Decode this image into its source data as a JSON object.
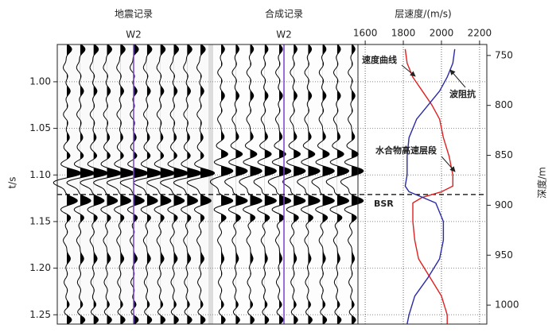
{
  "chart_data": {
    "type": "seismic",
    "panels": [
      {
        "title": "地震记录",
        "well": "W2",
        "traces": 11,
        "events": [
          [
            0.965,
            0.7
          ],
          [
            0.985,
            -0.5
          ],
          [
            1.01,
            0.5
          ],
          [
            1.035,
            -0.5
          ],
          [
            1.06,
            0.4
          ],
          [
            1.08,
            0.6
          ],
          [
            1.098,
            1.6
          ],
          [
            1.108,
            -1.2
          ],
          [
            1.128,
            1.6
          ],
          [
            1.145,
            0.7
          ],
          [
            1.17,
            -0.5
          ],
          [
            1.19,
            0.5
          ],
          [
            1.215,
            -0.4
          ],
          [
            1.24,
            0.5
          ],
          [
            1.255,
            0.8
          ]
        ]
      },
      {
        "title": "合成记录",
        "well": "W2",
        "traces": 10,
        "events": [
          [
            0.965,
            0.5
          ],
          [
            0.99,
            -0.5
          ],
          [
            1.015,
            0.5
          ],
          [
            1.04,
            -0.5
          ],
          [
            1.06,
            0.5
          ],
          [
            1.078,
            1.2
          ],
          [
            1.095,
            1.5
          ],
          [
            1.108,
            -1.0
          ],
          [
            1.128,
            1.8
          ],
          [
            1.145,
            0.9
          ],
          [
            1.17,
            -0.5
          ],
          [
            1.19,
            0.4
          ],
          [
            1.215,
            -0.4
          ],
          [
            1.24,
            0.5
          ],
          [
            1.255,
            0.7
          ]
        ]
      }
    ],
    "ylabel": "t/s",
    "ylim": [
      0.96,
      1.26
    ],
    "yticks": [
      {
        "value": 1.0,
        "label": "1.00"
      },
      {
        "value": 1.05,
        "label": "1.05"
      },
      {
        "value": 1.1,
        "label": "1.10"
      },
      {
        "value": 1.15,
        "label": "1.15"
      },
      {
        "value": 1.2,
        "label": "1.20"
      },
      {
        "value": 1.25,
        "label": "1.25"
      }
    ],
    "velocity_axis": {
      "label": "层速度/(m/s)",
      "xlim": [
        1562,
        2238
      ],
      "xticks": [
        1600,
        1800,
        2000,
        2200
      ]
    },
    "y2label": "深度/m",
    "y2lim": [
      739,
      1019
    ],
    "y2ticks": [
      750,
      800,
      850,
      900,
      950,
      1000
    ],
    "x": [
      0.965,
      0.98,
      0.995,
      1.01,
      1.025,
      1.04,
      1.06,
      1.08,
      1.1,
      1.112,
      1.118,
      1.124,
      1.13,
      1.15,
      1.17,
      1.19,
      1.21,
      1.23,
      1.25,
      1.26
    ],
    "series": [
      {
        "name": "速度曲线",
        "color": "#e02020",
        "values": [
          1810,
          1820,
          1850,
          1900,
          1950,
          1990,
          2010,
          2040,
          2060,
          2060,
          2000,
          1900,
          1850,
          1850,
          1860,
          1880,
          1940,
          2000,
          2030,
          2030
        ]
      },
      {
        "name": "波阻抗",
        "color": "#2a2aa8",
        "values": [
          2070,
          2060,
          2030,
          1990,
          1930,
          1870,
          1830,
          1820,
          1820,
          1810,
          1830,
          1900,
          1970,
          2010,
          2010,
          1990,
          1930,
          1860,
          1830,
          1820
        ]
      }
    ],
    "annotations": [
      {
        "text": "水合物高速层段"
      },
      {
        "text": "BSR",
        "value": 1.121
      }
    ]
  }
}
